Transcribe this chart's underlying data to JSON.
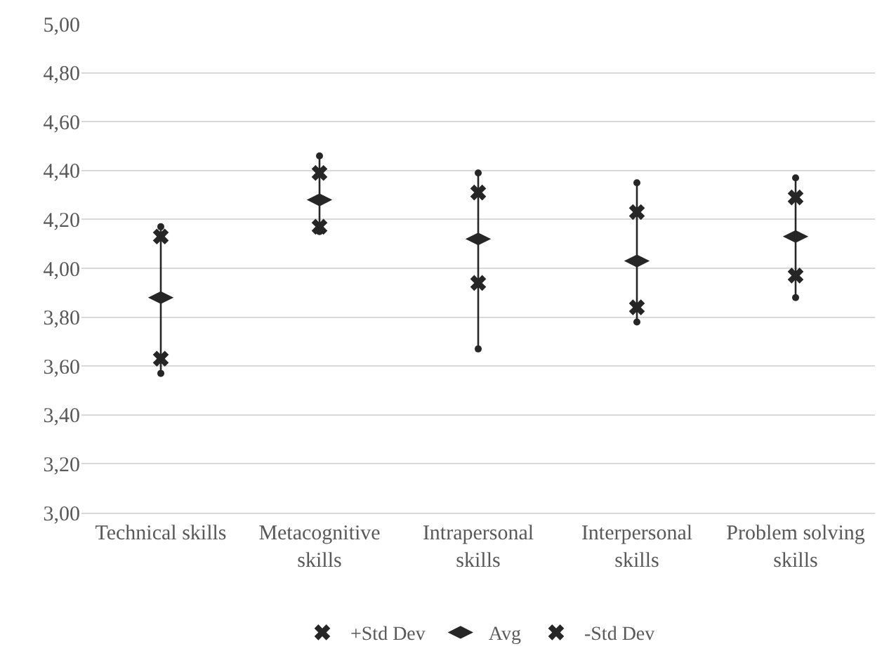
{
  "chart_data": {
    "type": "scatter",
    "categories": [
      "Technical skills",
      "Metacognitive skills",
      "Intrapersonal skills",
      "Interpersonal skills",
      "Problem solving skills"
    ],
    "series": [
      {
        "type": "line",
        "color": "#262626",
        "marker": "circle",
        "x": [
          "Technical skills",
          "Technical skills",
          "Technical skills",
          "Metacognitive skills",
          "Metacognitive skills",
          "Metacognitive skills",
          "Intrapersonal skills",
          "Intrapersonal skills",
          "Intrapersonal skills",
          "Interpersonal skills",
          "Interpersonal skills",
          "Interpersonal skills",
          "Problem solving skills",
          "Problem solving skills"
        ],
        "values": [
          3.57,
          4.17,
          null,
          4.15,
          4.46,
          null,
          3.67,
          4.39,
          null,
          3.78,
          4.35,
          null,
          3.88,
          4.37
        ]
      },
      {
        "name": "+Std Dev",
        "color": "#262626",
        "marker": "cross",
        "values": [
          4.13,
          4.39,
          4.31,
          4.23,
          4.29
        ]
      },
      {
        "name": "Avg",
        "color": "#262626",
        "values": [
          3.88,
          4.28,
          4.12,
          4.03,
          4.13
        ]
      },
      {
        "name": "-Std Dev",
        "color": "#262626",
        "marker": "cross",
        "values": [
          3.63,
          4.17,
          3.94,
          3.84,
          3.97
        ]
      }
    ],
    "ylim": [
      3.0,
      5.0
    ],
    "yticks": [
      {
        "value": 3.0,
        "label": "3,00"
      },
      {
        "value": 3.2,
        "label": "3,20"
      },
      {
        "value": 3.4,
        "label": "3,40"
      },
      {
        "value": 3.6,
        "label": "3,60"
      },
      {
        "value": 3.8,
        "label": "3,80"
      },
      {
        "value": 4.0,
        "label": "4,00"
      },
      {
        "value": 4.2,
        "label": "4,20"
      },
      {
        "value": 4.4,
        "label": "4,40"
      },
      {
        "value": 4.6,
        "label": "4,60"
      },
      {
        "value": 4.8,
        "label": "4,80"
      },
      {
        "value": 5.0,
        "label": "5,00"
      }
    ],
    "grid": "y",
    "legend": "bottom"
  }
}
